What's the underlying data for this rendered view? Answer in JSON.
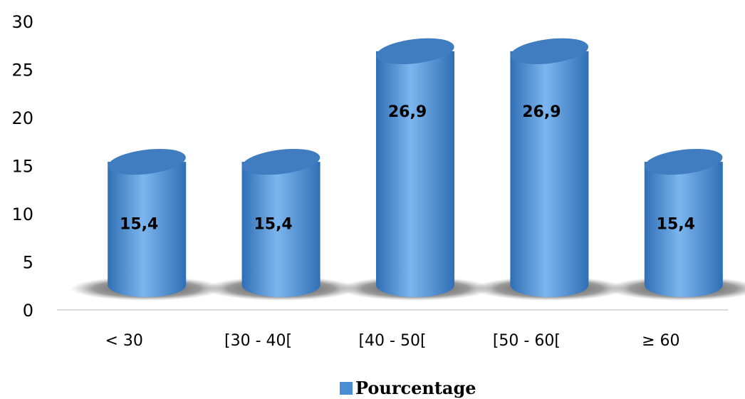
{
  "chart_data": {
    "type": "bar",
    "categories": [
      "< 30",
      "[30 - 40[",
      "[40 - 50[",
      "[50 - 60[",
      "≥ 60"
    ],
    "series": [
      {
        "name": "Pourcentage",
        "values": [
          15.4,
          15.4,
          26.9,
          26.9,
          15.4
        ]
      }
    ],
    "data_labels": [
      "15,4",
      "15,4",
      "26,9",
      "26,9",
      "15,4"
    ],
    "ylim": [
      0,
      30
    ],
    "yticks": [
      "0",
      "5",
      "10",
      "15",
      "20",
      "25",
      "30"
    ],
    "title": "",
    "xlabel": "",
    "ylabel": "",
    "grid": false,
    "legend_position": "bottom-center",
    "bar_style": "3d-cylinder",
    "colors": {
      "bar": "#4a8fd6",
      "bar_dark": "#2f6fb5",
      "bar_light": "#7db6ee",
      "top": "#3f7cc0",
      "shadow": "#444444",
      "axis": "#d9d9d9"
    }
  }
}
